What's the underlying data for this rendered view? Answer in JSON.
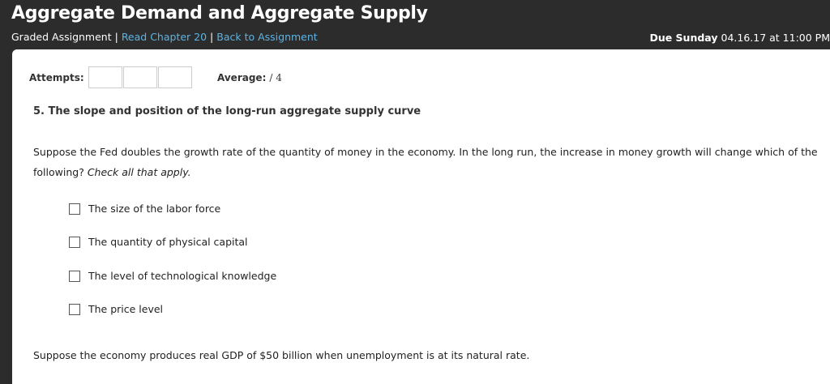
{
  "header": {
    "title": "Aggregate Demand and Aggregate Supply",
    "assignment_type": "Graded Assignment",
    "separator": "|",
    "read_link": "Read Chapter 20",
    "back_link": "Back to Assignment",
    "due_label": "Due Sunday",
    "due_value": "04.16.17 at 11:00 PM"
  },
  "status": {
    "attempts_label": "Attempts:",
    "average_label": "Average:",
    "average_value": "/ 4"
  },
  "question": {
    "title": "5. The slope and position of the long-run aggregate supply curve",
    "prompt": "Suppose the Fed doubles the growth rate of the quantity of money in the economy. In the long run, the increase in money growth will change which of the following?",
    "instruction": "Check all that apply.",
    "options": [
      {
        "label": "The size of the labor force",
        "checked": false
      },
      {
        "label": "The quantity of physical capital",
        "checked": false
      },
      {
        "label": "The level of technological knowledge",
        "checked": false
      },
      {
        "label": "The price level",
        "checked": false
      }
    ],
    "followup": "Suppose the economy produces real GDP of $50 billion when unemployment is at its natural rate."
  }
}
